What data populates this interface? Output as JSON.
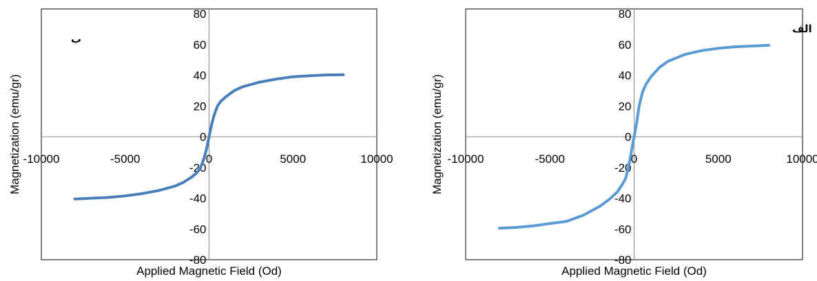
{
  "colors": {
    "series": "#4a7ebb",
    "series_light": "#5b9bd5",
    "axis": "#808080",
    "frame": "#000000"
  },
  "chart_data": [
    {
      "type": "line",
      "panel_label": "ب",
      "xlabel": "Applied Magnetic Field (Od)",
      "ylabel": "Magnetization (emu/gr)",
      "xlim": [
        -10000,
        10000
      ],
      "ylim": [
        -80,
        80
      ],
      "xticks": [
        -10000,
        -5000,
        0,
        5000,
        10000
      ],
      "yticks": [
        -80,
        -60,
        -40,
        -20,
        0,
        20,
        40,
        60,
        80
      ],
      "grid": false,
      "series": [
        {
          "x": [
            -8000,
            -7000,
            -6000,
            -5000,
            -4000,
            -3000,
            -2000,
            -1500,
            -1000,
            -700,
            -500,
            -300,
            -150,
            0,
            150,
            300,
            500,
            700,
            1000,
            1500,
            2000,
            3000,
            4000,
            5000,
            6000,
            7000,
            8000
          ],
          "values": [
            -40.5,
            -40,
            -39.5,
            -38.5,
            -37,
            -35,
            -32,
            -29.5,
            -26,
            -23,
            -20,
            -14,
            -8,
            0,
            8,
            14,
            20,
            23,
            26,
            30,
            32.5,
            35.5,
            37.5,
            39,
            39.7,
            40.2,
            40.3
          ]
        }
      ]
    },
    {
      "type": "line",
      "panel_label": "الف",
      "xlabel": "Applied Magnetic Field (Od)",
      "ylabel": "Magnetization (emu/gr)",
      "xlim": [
        -10000,
        10000
      ],
      "ylim": [
        -80,
        80
      ],
      "xticks": [
        -10000,
        -5000,
        0,
        5000,
        10000
      ],
      "yticks": [
        -80,
        -60,
        -40,
        -20,
        0,
        20,
        40,
        60,
        80
      ],
      "grid": false,
      "series": [
        {
          "x": [
            -8000,
            -7000,
            -6000,
            -5000,
            -4000,
            -3000,
            -2000,
            -1500,
            -1000,
            -700,
            -500,
            -300,
            -150,
            0,
            150,
            300,
            500,
            700,
            1000,
            1500,
            2000,
            3000,
            4000,
            5000,
            6000,
            7000,
            8000
          ],
          "values": [
            -59.5,
            -59,
            -58,
            -56.5,
            -55,
            -51,
            -45,
            -41,
            -36,
            -31,
            -27,
            -18,
            -9,
            0,
            9,
            20,
            29,
            34,
            39,
            45,
            49,
            53.5,
            56,
            57.5,
            58.5,
            59,
            59.5
          ]
        }
      ]
    }
  ]
}
